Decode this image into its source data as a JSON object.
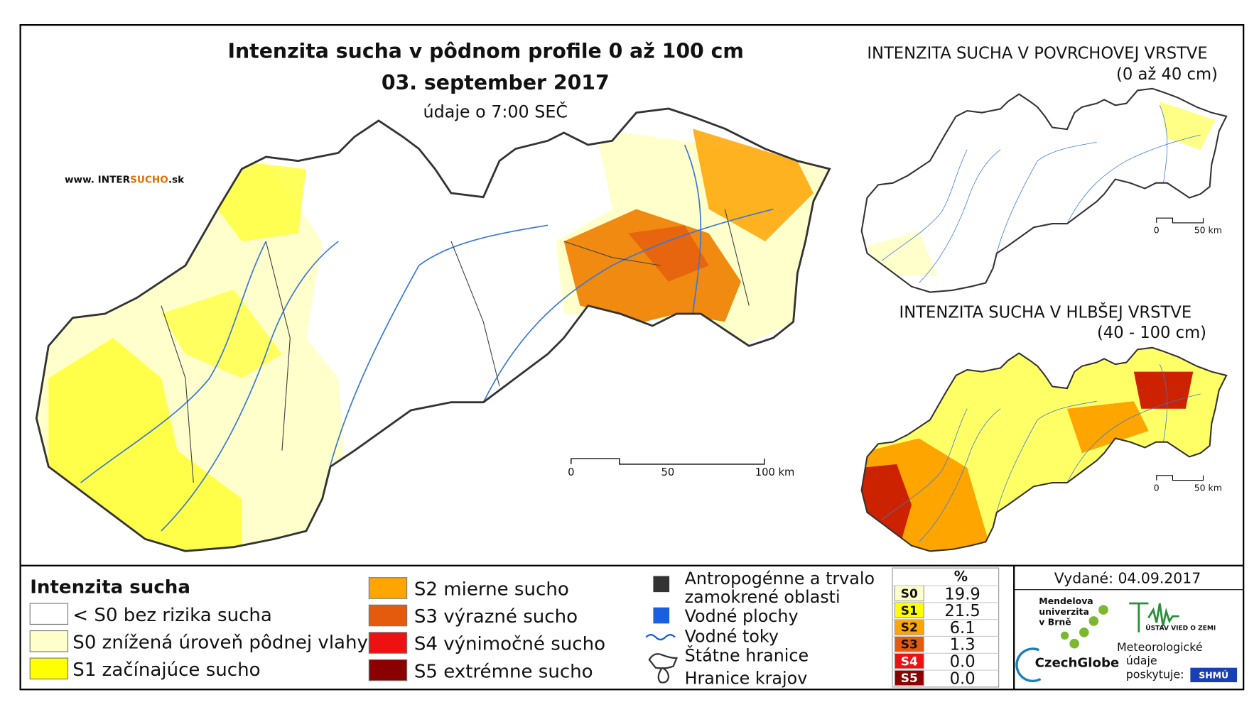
{
  "map": {
    "title": "Intenzita sucha v pôdnom profile 0 až 100 cm",
    "date": "03. september 2017",
    "time_note": "údaje o 7:00 SEČ",
    "website": {
      "prefix": "www. INTER",
      "highlight": "SUCHO",
      "suffix": ".sk"
    },
    "scale_labels": [
      "0",
      "50",
      "100 km"
    ]
  },
  "inset_surface": {
    "title": "INTENZITA SUCHA V POVRCHOVEJ VRSTVE",
    "subtitle": "(0 až 40 cm)",
    "scale_labels": [
      "0",
      "50 km"
    ]
  },
  "inset_deep": {
    "title": "INTENZITA SUCHA V HLBŠEJ VRSTVE",
    "subtitle": "(40 - 100 cm)",
    "scale_labels": [
      "0",
      "50 km"
    ]
  },
  "legend": {
    "title": "Intenzita sucha",
    "items": [
      {
        "label": "< S0 bez rizika sucha",
        "color": "#ffffff"
      },
      {
        "label": "S0 znížená úroveň pôdnej vlahy",
        "color": "#ffffcc"
      },
      {
        "label": "S1 začínajúce sucho",
        "color": "#ffff00"
      },
      {
        "label": "S2 mierne sucho",
        "color": "#ffa500"
      },
      {
        "label": "S3 výrazné sucho",
        "color": "#e55b0e"
      },
      {
        "label": "S4 výnimočné sucho",
        "color": "#ee1111"
      },
      {
        "label": "S5 extrémne sucho",
        "color": "#8b0000"
      }
    ]
  },
  "layers": [
    {
      "lines": [
        "Antropogénne a trvalo",
        "zamokrené oblasti"
      ],
      "color": "#333333"
    },
    {
      "lines": [
        "Vodné plochy"
      ],
      "color": "#1a5fe0"
    },
    {
      "lines": [
        "Vodné toky"
      ],
      "color": "#1a5fe0"
    },
    {
      "lines": [
        "Štátne hranice"
      ],
      "color": "#333333"
    },
    {
      "lines": [
        "Hranice krajov"
      ],
      "color": "#333333"
    }
  ],
  "stats": {
    "header": "%",
    "rows": [
      [
        "S0",
        "19.9"
      ],
      [
        "S1",
        "21.5"
      ],
      [
        "S2",
        "6.1"
      ],
      [
        "S3",
        "1.3"
      ],
      [
        "S4",
        "0.0"
      ],
      [
        "S5",
        "0.0"
      ]
    ]
  },
  "issued": "Vydané: 04.09.2017",
  "logos": {
    "mendel": [
      "Mendelova",
      "univerzita",
      "v Brně"
    ],
    "czechglobe": "CzechGlobe",
    "uvgz": "ÚSTAV VIED O ZEMI",
    "meteo": [
      "Meteorologické",
      "údaje",
      "poskytuje:"
    ],
    "shmu": "SHMÚ"
  }
}
